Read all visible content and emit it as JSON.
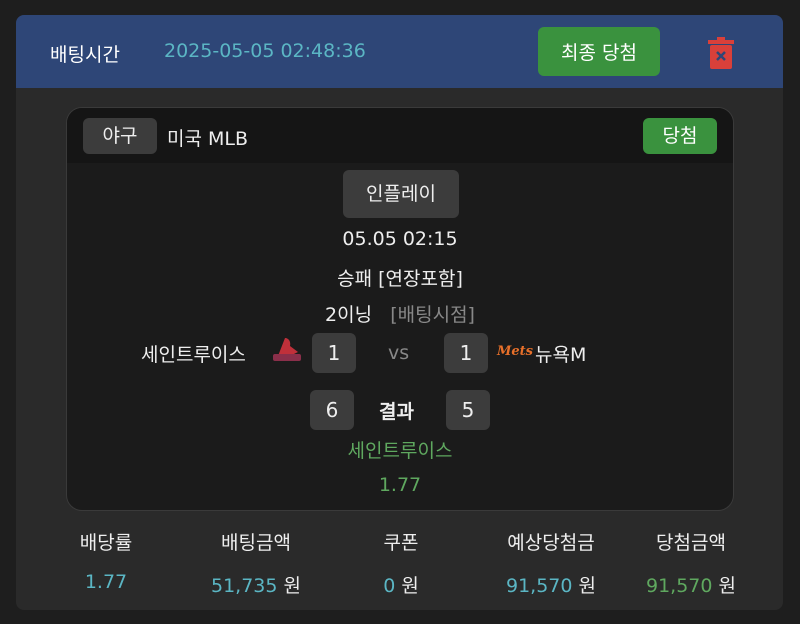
{
  "header": {
    "bet_time_label": "배팅시간",
    "bet_time": "2025-05-05 02:48:36",
    "final_button": "최종 당첨",
    "delete_icon": "trash-icon"
  },
  "match": {
    "sport": "야구",
    "league": "미국 MLB",
    "status": "당첨",
    "inplay": "인플레이",
    "datetime": "05.05 02:15",
    "market": "승패 [연장포함]",
    "inning": "2이닝",
    "bet_point": "[배팅시점]",
    "home": "세인트루이스",
    "away": "뉴욕M",
    "home_score_at_bet": "1",
    "away_score_at_bet": "1",
    "vs": "vs",
    "home_final": "6",
    "away_final": "5",
    "result_label": "결과",
    "pick": "세인트루이스",
    "odds": "1.77",
    "away_logo_text": "Mets"
  },
  "stats": [
    {
      "label": "배당률",
      "value": "1.77",
      "unit": ""
    },
    {
      "label": "배팅금액",
      "value": "51,735",
      "unit": "원"
    },
    {
      "label": "쿠폰",
      "value": "0",
      "unit": "원"
    },
    {
      "label": "예상당첨금",
      "value": "91,570",
      "unit": "원"
    },
    {
      "label": "당첨금액",
      "value": "91,570",
      "unit": "원"
    }
  ],
  "colors": {
    "header": "#2e4677",
    "accent_green": "#3a923e",
    "value_teal": "#5bb6c4",
    "win_text": "#5fa85f",
    "delete": "#d9403a"
  }
}
